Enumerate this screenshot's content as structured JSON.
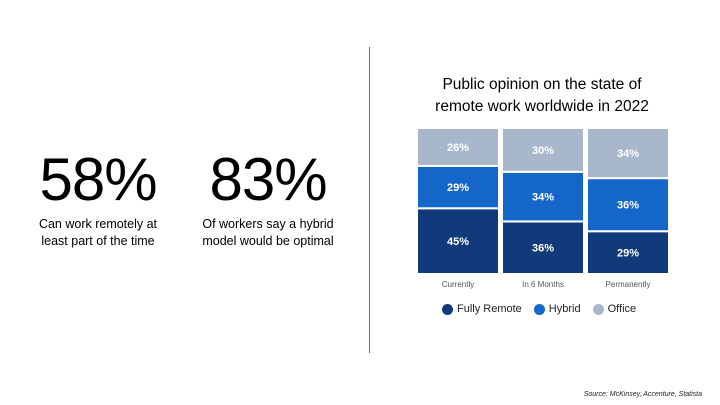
{
  "stats": [
    {
      "value": "58%",
      "line1": "Can work remotely at",
      "line2": "least part of the time"
    },
    {
      "value": "83%",
      "line1": "Of workers say a hybrid",
      "line2": "model would be optimal"
    }
  ],
  "chart_data": {
    "type": "bar",
    "stacked": true,
    "title_line1": "Public opinion on the state of",
    "title_line2": "remote work worldwide in 2022",
    "categories": [
      "Currently",
      "In 6 Months",
      "Permanently"
    ],
    "series": [
      {
        "name": "Fully Remote",
        "color": "#103a7a",
        "values": [
          45,
          36,
          29
        ],
        "labels": [
          "45%",
          "36%",
          "29%"
        ]
      },
      {
        "name": "Hybrid",
        "color": "#1467c8",
        "values": [
          29,
          34,
          36
        ],
        "labels": [
          "29%",
          "34%",
          "36%"
        ]
      },
      {
        "name": "Office",
        "color": "#a9b7cb",
        "values": [
          26,
          30,
          34
        ],
        "labels": [
          "26%",
          "30%",
          "34%"
        ]
      }
    ],
    "ylim": [
      0,
      100
    ],
    "legend_position": "bottom"
  },
  "source": "Source: McKinsey, Accenture, Statista"
}
